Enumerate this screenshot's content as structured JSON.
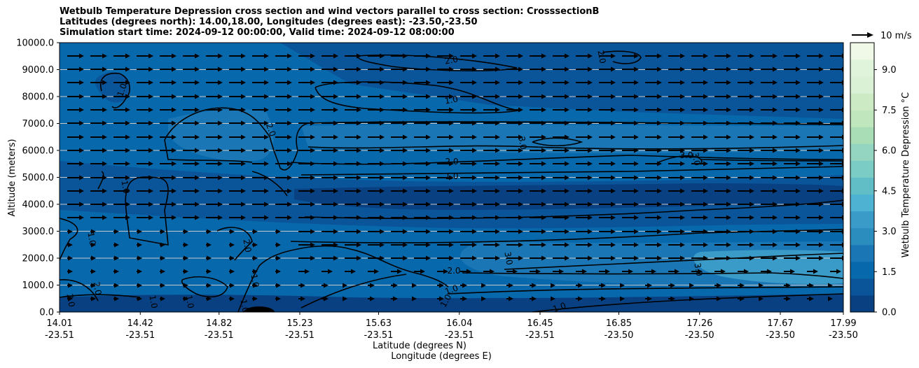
{
  "title": {
    "line1": "Wetbulb Temperature Depression cross section and wind vectors parallel to cross section: CrosssectionB",
    "line2": "Latitudes (degrees north): 14.00,18.00, Longitudes (degrees east): -23.50,-23.50",
    "line3": "Simulation start time: 2024-09-12 00:00:00, Valid time: 2024-09-12 08:00:00"
  },
  "chart_data": {
    "type": "contour-cross-section",
    "ylabel": "Altitude (meters)",
    "xlabel_lat": "Latitude (degrees N)",
    "xlabel_lon": "Longitude (degrees E)",
    "ylim": [
      0,
      10000
    ],
    "y_ticks": [
      "0.0",
      "1000.0",
      "2000.0",
      "3000.0",
      "4000.0",
      "5000.0",
      "6000.0",
      "7000.0",
      "8000.0",
      "9000.0",
      "10000.0"
    ],
    "x_ticks_lat": [
      "14.01",
      "14.42",
      "14.82",
      "15.23",
      "15.63",
      "16.04",
      "16.45",
      "16.85",
      "17.26",
      "17.67",
      "17.99"
    ],
    "x_ticks_lon": [
      "-23.51",
      "-23.51",
      "-23.51",
      "-23.51",
      "-23.51",
      "-23.51",
      "-23.51",
      "-23.50",
      "-23.50",
      "-23.50",
      "-23.50"
    ],
    "xlim": [
      14.01,
      17.99
    ],
    "colorbar": {
      "label": "Wetbulb Temperature Depression $^\\circ$C",
      "min": 0.0,
      "max": 10.0,
      "ticks": [
        "0.0",
        "1.5",
        "3.0",
        "4.5",
        "6.0",
        "7.5",
        "9.0"
      ],
      "tick_values": [
        0.0,
        1.5,
        3.0,
        4.5,
        6.0,
        7.5,
        9.0
      ],
      "colors": [
        "#084081",
        "#0a559a",
        "#0868ac",
        "#1a76b4",
        "#2b8cbe",
        "#3a9bc8",
        "#4eb3d3",
        "#62bec6",
        "#7bccc4",
        "#93d5c0",
        "#a8ddb5",
        "#bfe6bc",
        "#ccebc5",
        "#dbf1d6",
        "#e0f3db",
        "#f0f9e8"
      ]
    },
    "contour_labels": [
      "2.0",
      "2.0",
      "1.0",
      "1.0",
      "2.0",
      "3.0",
      "3.0",
      "3.0",
      "2.0",
      "1.0",
      "1.0",
      "1.0",
      "2.0",
      "3.0",
      "3.0",
      "2.0",
      "1.0",
      "1.0",
      "1.0",
      "1.0",
      "1.0",
      "2.0",
      "2.0",
      "1.0",
      "1.0"
    ],
    "wind_reference": {
      "label": "10 m/s",
      "speed": 10
    },
    "wind_vectors_uniform_direction": "east, decreasing near surface"
  }
}
